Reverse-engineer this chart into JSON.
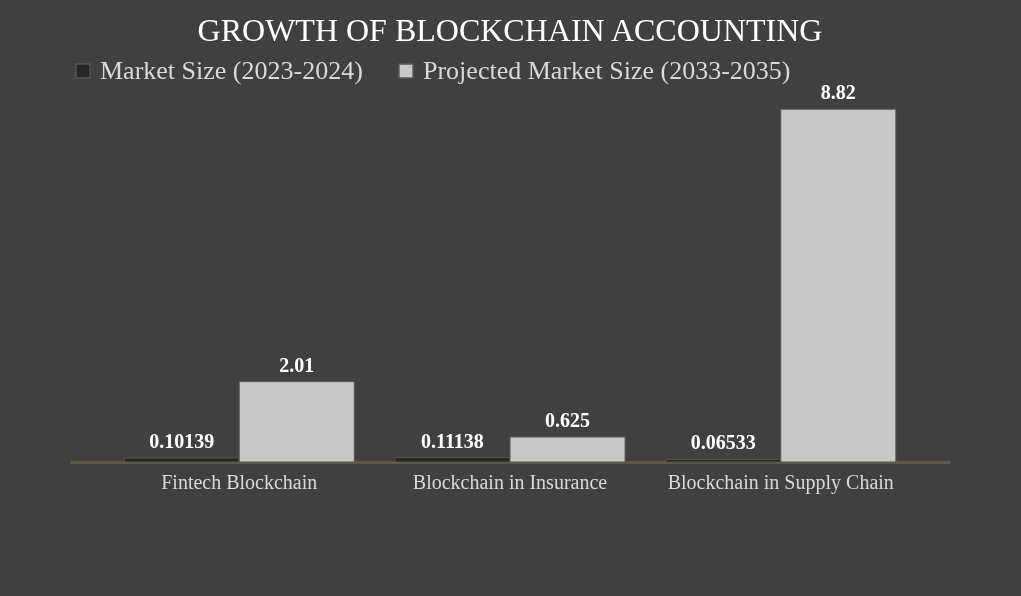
{
  "chart_data": {
    "type": "bar",
    "title": "GROWTH OF BLOCKCHAIN ACCOUNTING",
    "categories": [
      "Fintech Blockchain",
      "Blockchain in Insurance",
      "Blockchain in Supply Chain"
    ],
    "series": [
      {
        "name": "Market Size (2023-2024)",
        "color": "#262626",
        "values": [
          0.10139,
          0.11138,
          0.06533
        ]
      },
      {
        "name": "Projected Market Size (2033-2035)",
        "color": "#c8c8c8",
        "values": [
          2.01,
          0.625,
          8.82
        ]
      }
    ],
    "data_labels": true,
    "legend": "top",
    "grid": false
  }
}
